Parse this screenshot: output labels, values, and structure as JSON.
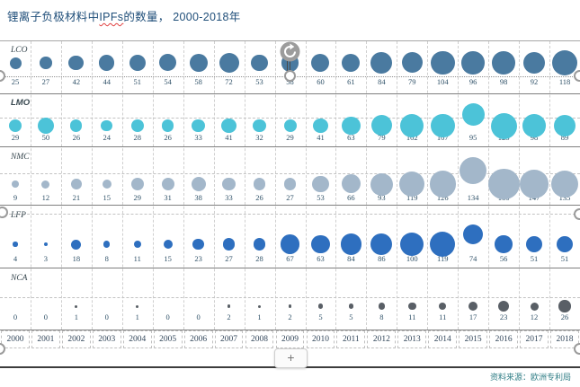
{
  "title": {
    "prefix": "锂离子负极材料中",
    "highlight": "IPFs",
    "suffix": "的数量， 2000-2018年"
  },
  "source": "资料来源：欧洲专利局",
  "controls": {
    "plus_label": "+",
    "rotate_icon": "rotate-arrow",
    "slider_year": 2009
  },
  "chart_data": {
    "type": "scatter",
    "variant": "bubble timeline, one band per series, bubble area proportional to value, value printed under each bubble",
    "title": "锂离子负极材料中IPFs的数量， 2000-2018年",
    "x": [
      2000,
      2001,
      2002,
      2003,
      2004,
      2005,
      2006,
      2007,
      2008,
      2009,
      2010,
      2011,
      2012,
      2013,
      2014,
      2015,
      2016,
      2017,
      2018
    ],
    "series": [
      {
        "name": "LCO",
        "color": "#4a7aa0",
        "values": [
          25,
          27,
          42,
          44,
          51,
          54,
          58,
          72,
          53,
          58,
          60,
          61,
          84,
          79,
          104,
          96,
          98,
          92,
          118
        ]
      },
      {
        "name": "LMO",
        "color": "#4cc3d8",
        "values": [
          29,
          50,
          26,
          24,
          28,
          26,
          33,
          41,
          32,
          29,
          41,
          63,
          79,
          102,
          107,
          95,
          125,
          98,
          89
        ]
      },
      {
        "name": "NMC",
        "color": "#a3b7ca",
        "values": [
          9,
          12,
          21,
          15,
          29,
          31,
          38,
          33,
          26,
          27,
          53,
          66,
          93,
          119,
          126,
          134,
          180,
          147,
          135
        ]
      },
      {
        "name": "LFP",
        "color": "#2e6fbf",
        "values": [
          4,
          3,
          18,
          8,
          11,
          15,
          23,
          27,
          28,
          67,
          63,
          84,
          86,
          100,
          119,
          74,
          56,
          51,
          51
        ]
      },
      {
        "name": "NCA",
        "color": "#595f66",
        "values": [
          0,
          0,
          1,
          0,
          1,
          0,
          0,
          2,
          1,
          2,
          5,
          5,
          8,
          11,
          11,
          17,
          23,
          12,
          26
        ]
      }
    ],
    "xlabel": "",
    "ylabel": "",
    "grid": true,
    "legend_position": "series labels at top-left of each horizontal band",
    "source": "资料来源：欧洲专利局"
  }
}
